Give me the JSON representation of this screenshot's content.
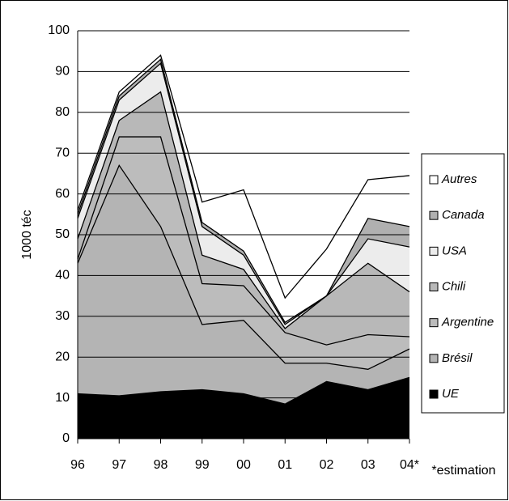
{
  "chart_data": {
    "type": "stacked-area",
    "y_label": "1000 téc",
    "note": "*estimation",
    "categories": [
      "96",
      "97",
      "98",
      "99",
      "00",
      "01",
      "02",
      "03",
      "04*"
    ],
    "series": [
      {
        "name": "UE",
        "color": "#000000",
        "values": [
          11,
          10.5,
          11.5,
          12,
          11,
          8.5,
          14,
          12,
          15
        ]
      },
      {
        "name": "Brésil",
        "color": "#b4b4b4",
        "values": [
          32,
          56.5,
          40.5,
          16,
          18,
          10,
          4.5,
          5,
          7
        ]
      },
      {
        "name": "Argentine",
        "color": "#bcbcbc",
        "values": [
          1,
          7,
          22,
          10,
          8.5,
          7.5,
          4.5,
          8.5,
          3
        ]
      },
      {
        "name": "Chili",
        "color": "#b8b8b8",
        "values": [
          5,
          4,
          11,
          7,
          4,
          1,
          12,
          17.5,
          11
        ]
      },
      {
        "name": "USA",
        "color": "#ececec",
        "values": [
          5,
          5,
          7,
          7,
          3.5,
          1,
          0,
          6,
          11
        ]
      },
      {
        "name": "Canada",
        "color": "#b0b0b0",
        "values": [
          1,
          1,
          1,
          1,
          1,
          0.5,
          0,
          5,
          5
        ]
      },
      {
        "name": "Autres",
        "color": "#ffffff",
        "values": [
          1,
          1,
          1,
          5,
          15,
          6,
          11.5,
          9.5,
          12.5
        ]
      }
    ],
    "ylim": [
      0,
      100
    ],
    "yticks": [
      0,
      10,
      20,
      30,
      40,
      50,
      60,
      70,
      80,
      90,
      100
    ],
    "grid": true
  }
}
